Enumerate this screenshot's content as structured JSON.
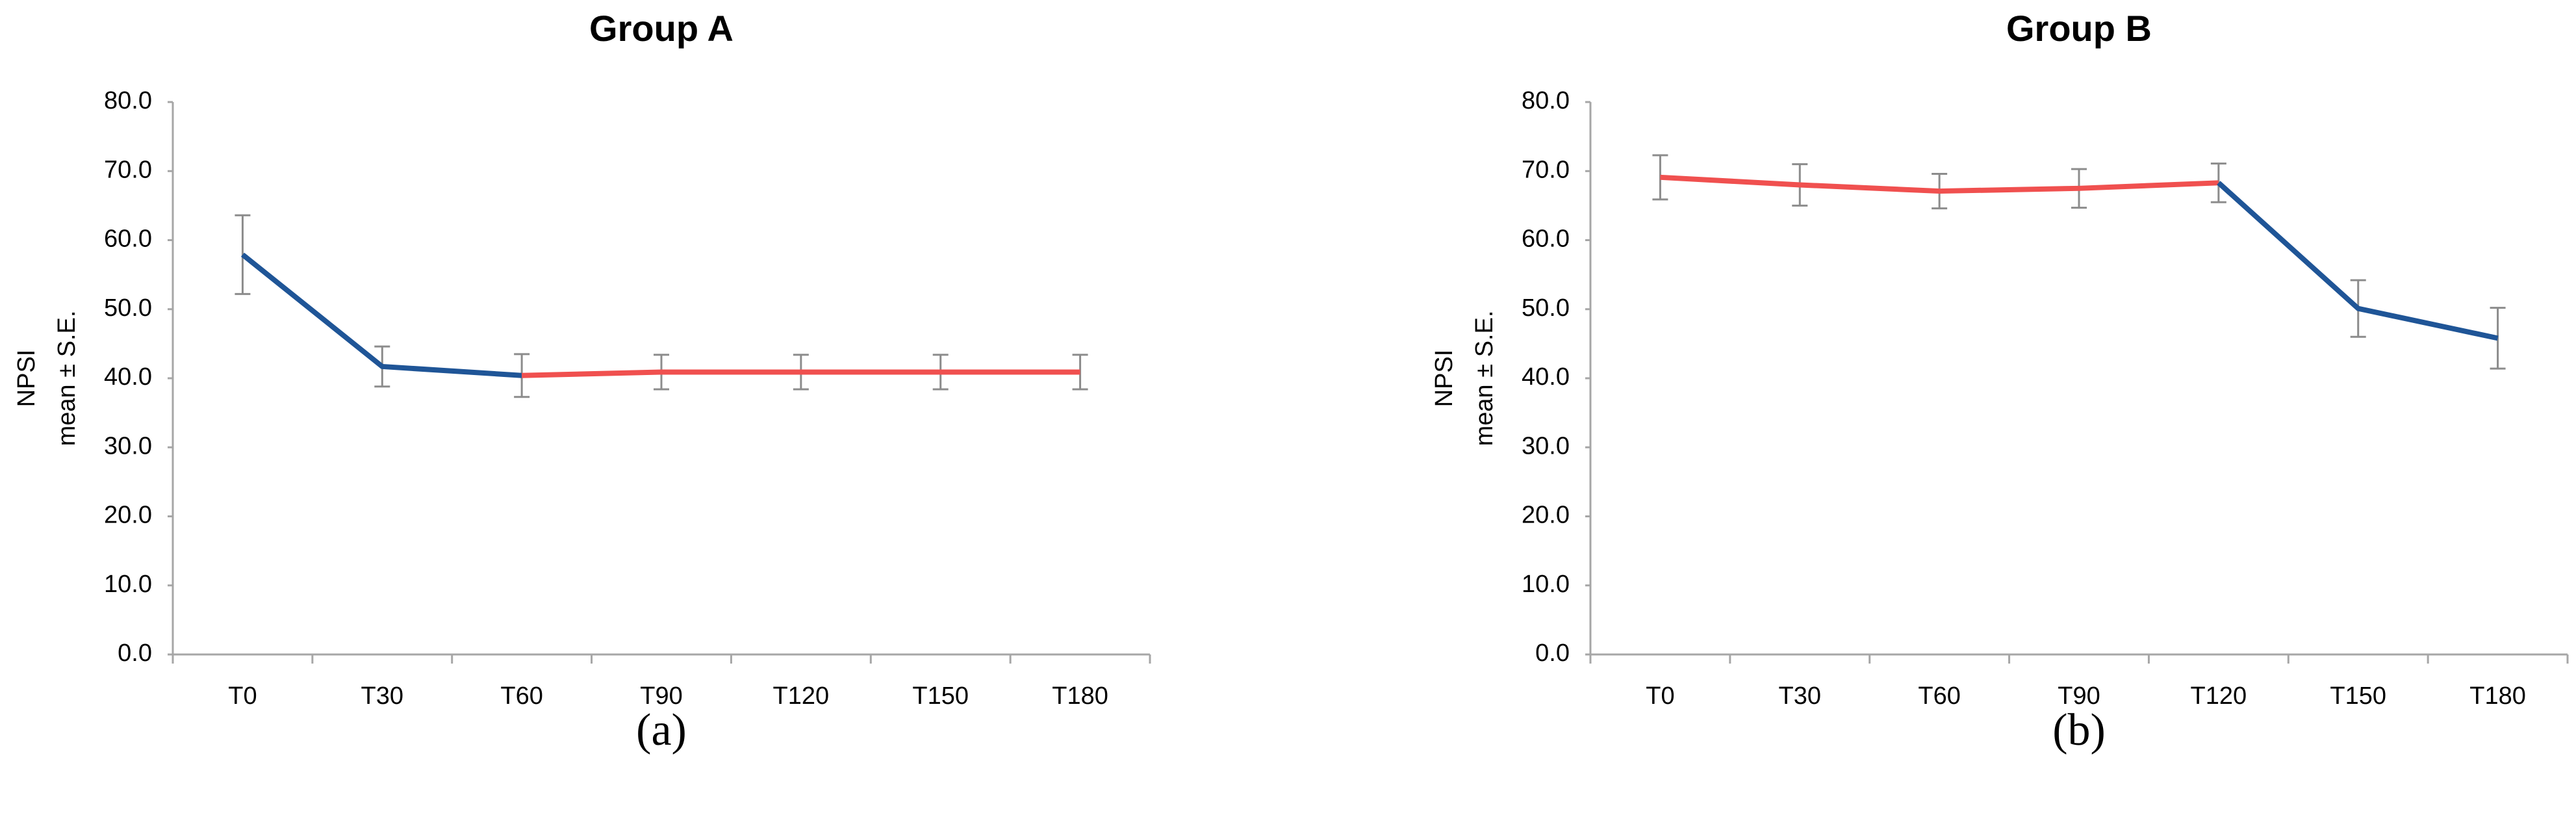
{
  "chart_data": [
    {
      "type": "line",
      "title": "Group A",
      "caption": "(a)",
      "ylabel": [
        "NPSI",
        "mean ± S.E."
      ],
      "categories": [
        "T0",
        "T30",
        "T60",
        "T90",
        "T120",
        "T150",
        "T180"
      ],
      "series": [
        {
          "color": "#1f5597",
          "values": [
            57.9,
            41.7,
            40.4,
            null,
            null,
            null,
            null
          ]
        },
        {
          "color": "#f0504f",
          "values": [
            null,
            null,
            40.4,
            40.9,
            40.9,
            40.9,
            40.9
          ]
        }
      ],
      "errors": [
        5.7,
        2.9,
        3.1,
        2.5,
        2.5,
        2.5,
        2.5
      ],
      "ylim": [
        0,
        80
      ],
      "yticks": [
        {
          "value": 0,
          "label": "0.0"
        },
        {
          "value": 10,
          "label": "10.0"
        },
        {
          "value": 20,
          "label": "20.0"
        },
        {
          "value": 30,
          "label": "30.0"
        },
        {
          "value": 40,
          "label": "40.0"
        },
        {
          "value": 50,
          "label": "50.0"
        },
        {
          "value": 60,
          "label": "60.0"
        },
        {
          "value": 70,
          "label": "70.0"
        },
        {
          "value": 80,
          "label": "80.0"
        }
      ],
      "grid": false
    },
    {
      "type": "line",
      "title": "Group B",
      "caption": "(b)",
      "ylabel": [
        "NPSI",
        "mean ± S.E."
      ],
      "categories": [
        "T0",
        "T30",
        "T60",
        "T90",
        "T120",
        "T150",
        "T180"
      ],
      "series": [
        {
          "color": "#f0504f",
          "values": [
            69.1,
            68.0,
            67.1,
            67.5,
            68.3,
            null,
            null
          ]
        },
        {
          "color": "#1f5597",
          "values": [
            null,
            null,
            null,
            null,
            68.3,
            50.1,
            45.8
          ]
        }
      ],
      "errors": [
        3.2,
        3.0,
        2.5,
        2.8,
        2.8,
        4.1,
        4.4
      ],
      "ylim": [
        0,
        80
      ],
      "yticks": [
        {
          "value": 0,
          "label": "0.0"
        },
        {
          "value": 10,
          "label": "10.0"
        },
        {
          "value": 20,
          "label": "20.0"
        },
        {
          "value": 30,
          "label": "30.0"
        },
        {
          "value": 40,
          "label": "40.0"
        },
        {
          "value": 50,
          "label": "50.0"
        },
        {
          "value": 60,
          "label": "60.0"
        },
        {
          "value": 70,
          "label": "70.0"
        },
        {
          "value": 80,
          "label": "80.0"
        }
      ],
      "grid": false
    }
  ]
}
